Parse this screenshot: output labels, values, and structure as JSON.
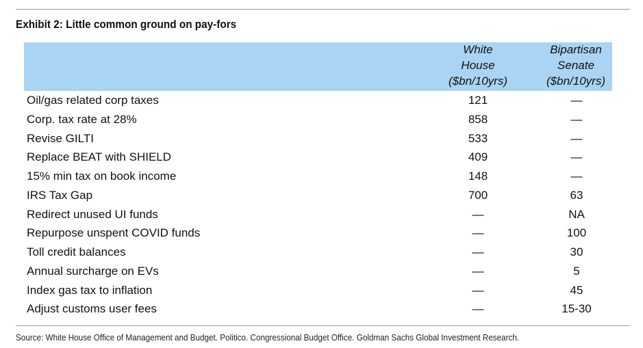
{
  "exhibit": {
    "title": "Exhibit 2: Little common ground on pay-fors",
    "source": "Source: White House Office of Management and Budget. Politico. Congressional Budget Office. Goldman Sachs Global Investment Research."
  },
  "table": {
    "headers": {
      "white_house": [
        "White",
        "House",
        "($bn/10yrs)"
      ],
      "bipartisan_senate": [
        "Bipartisan",
        "Senate",
        "($bn/10yrs)"
      ]
    },
    "rows": [
      {
        "label": "Oil/gas related corp taxes",
        "white_house": "121",
        "senate": "—"
      },
      {
        "label": "Corp. tax rate at 28%",
        "white_house": "858",
        "senate": "—"
      },
      {
        "label": "Revise GILTI",
        "white_house": "533",
        "senate": "—"
      },
      {
        "label": "Replace BEAT with SHIELD",
        "white_house": "409",
        "senate": "—"
      },
      {
        "label": "15% min tax on book income",
        "white_house": "148",
        "senate": "—"
      },
      {
        "label": "IRS Tax Gap",
        "white_house": "700",
        "senate": "63"
      },
      {
        "label": "Redirect unused UI funds",
        "white_house": "—",
        "senate": "NA"
      },
      {
        "label": "Repurpose unspent COVID funds",
        "white_house": "—",
        "senate": "100"
      },
      {
        "label": "Toll credit balances",
        "white_house": "—",
        "senate": "30"
      },
      {
        "label": "Annual surcharge on EVs",
        "white_house": "—",
        "senate": "5"
      },
      {
        "label": "Index gas tax to inflation",
        "white_house": "—",
        "senate": "45"
      },
      {
        "label": "Adjust customs user fees",
        "white_house": "—",
        "senate": "15-30"
      }
    ]
  },
  "colors": {
    "header_band": "#a9d4f3",
    "rule": "#9a9a9a"
  }
}
